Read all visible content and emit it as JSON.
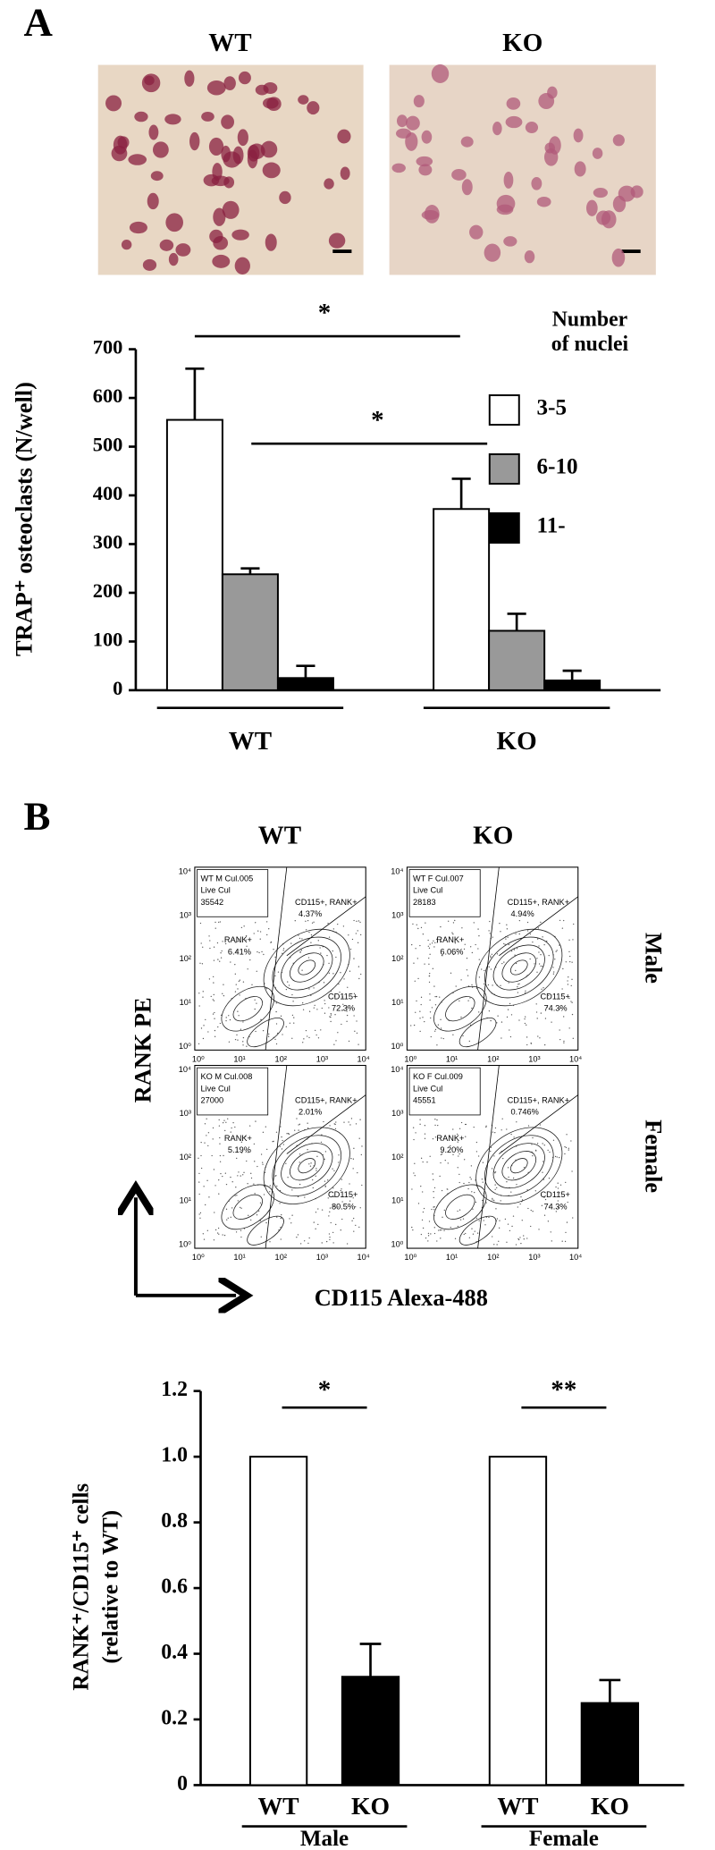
{
  "panel_labels": [
    "A",
    "B"
  ],
  "micrographs": {
    "labels": [
      "WT",
      "KO"
    ]
  },
  "chart_data": [
    {
      "type": "bar",
      "y_label": "TRAP⁺ osteoclasts (N/well)",
      "categories": [
        "WT",
        "KO"
      ],
      "series": [
        {
          "name": "3-5",
          "color": "#ffffff",
          "values": [
            555,
            372
          ],
          "errors": [
            105,
            62
          ]
        },
        {
          "name": "6-10",
          "color": "#999999",
          "values": [
            238,
            122
          ],
          "errors": [
            12,
            35
          ]
        },
        {
          "name": "11-",
          "color": "#000000",
          "values": [
            25,
            20
          ],
          "errors": [
            25,
            20
          ]
        }
      ],
      "legend_title": [
        "Number",
        "of nuclei"
      ],
      "annotations": [
        "*",
        "*"
      ],
      "ylim": [
        0,
        700
      ],
      "yticks": [
        0,
        100,
        200,
        300,
        400,
        500,
        600,
        700
      ],
      "grid": false
    },
    {
      "type": "bar",
      "y_label": [
        "RANK⁺/CD115⁺ cells",
        "(relative to WT)"
      ],
      "categories": [
        "WT",
        "KO",
        "WT",
        "KO"
      ],
      "groups": [
        "Male",
        "Female"
      ],
      "values": [
        1,
        0.33,
        1,
        0.25
      ],
      "errors": [
        null,
        0.1,
        null,
        0.07
      ],
      "colors": [
        "#ffffff",
        "#000000",
        "#ffffff",
        "#000000"
      ],
      "annotations": [
        "*",
        "**"
      ],
      "ylim": [
        0,
        1.2
      ],
      "yticks": [
        0,
        0.2,
        0.4,
        0.6,
        0.8,
        {
          "value": 1,
          "label": "1.0"
        },
        1.2
      ],
      "grid": false
    }
  ],
  "flow": {
    "column_labels": [
      "WT",
      "KO"
    ],
    "row_labels": [
      "Male",
      "Female"
    ],
    "y_label": "RANK PE",
    "x_label": "CD115 Alexa-488",
    "ticks": [
      "10⁰",
      "10¹",
      "10²",
      "10³",
      "10⁴"
    ],
    "plots": [
      {
        "gate": [
          "WT M Cul.005",
          "Live Cul",
          "35542"
        ],
        "double": [
          "CD115+, RANK+",
          "4.37%"
        ],
        "rank": [
          "RANK+",
          "6.41%"
        ],
        "cd115": [
          "CD115+",
          "72.3%"
        ]
      },
      {
        "gate": [
          "WT F Cul.007",
          "Live Cul",
          "28183"
        ],
        "double": [
          "CD115+, RANK+",
          "4.94%"
        ],
        "rank": [
          "RANK+",
          "6.06%"
        ],
        "cd115": [
          "CD115+",
          "74.3%"
        ]
      },
      {
        "gate": [
          "KO M Cul.008",
          "Live Cul",
          "27000"
        ],
        "double": [
          "CD115+, RANK+",
          "2.01%"
        ],
        "rank": [
          "RANK+",
          "5.19%"
        ],
        "cd115": [
          "CD115+",
          "80.5%"
        ]
      },
      {
        "gate": [
          "KO F Cul.009",
          "Live Cul",
          "45551"
        ],
        "double": [
          "CD115+, RANK+",
          "0.746%"
        ],
        "rank": [
          "RANK+",
          "9.20%"
        ],
        "cd115": [
          "CD115+",
          "74.3%"
        ]
      }
    ]
  }
}
